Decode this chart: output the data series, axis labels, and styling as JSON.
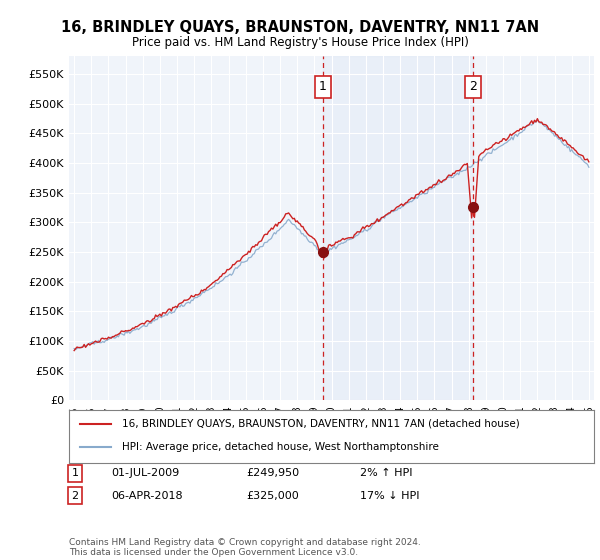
{
  "title": "16, BRINDLEY QUAYS, BRAUNSTON, DAVENTRY, NN11 7AN",
  "subtitle": "Price paid vs. HM Land Registry's House Price Index (HPI)",
  "ylabel_ticks": [
    "£0",
    "£50K",
    "£100K",
    "£150K",
    "£200K",
    "£250K",
    "£300K",
    "£350K",
    "£400K",
    "£450K",
    "£500K",
    "£550K"
  ],
  "ytick_values": [
    0,
    50000,
    100000,
    150000,
    200000,
    250000,
    300000,
    350000,
    400000,
    450000,
    500000,
    550000
  ],
  "ylim": [
    0,
    580000
  ],
  "background_color": "#ffffff",
  "plot_bg_color": "#f0f4fa",
  "shade_color": "#dde8f5",
  "legend_entry1": "16, BRINDLEY QUAYS, BRAUNSTON, DAVENTRY, NN11 7AN (detached house)",
  "legend_entry2": "HPI: Average price, detached house, West Northamptonshire",
  "sale1_year": 2009.5,
  "sale1_value": 249950,
  "sale1_date_str": "01-JUL-2009",
  "sale1_pct": "2% ↑ HPI",
  "sale2_year": 2018.25,
  "sale2_value": 325000,
  "sale2_date_str": "06-APR-2018",
  "sale2_pct": "17% ↓ HPI",
  "footer": "Contains HM Land Registry data © Crown copyright and database right 2024.\nThis data is licensed under the Open Government Licence v3.0.",
  "red_line_color": "#cc2222",
  "blue_line_color": "#88aacc",
  "marker_dot_color": "#881111",
  "grid_color": "#cccccc",
  "dashed_line_color": "#cc2222"
}
